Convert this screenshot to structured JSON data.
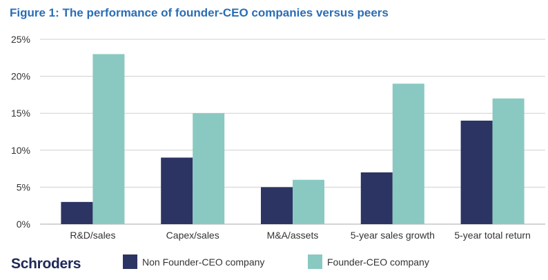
{
  "title": "Figure 1: The performance of founder-CEO companies versus peers",
  "brand": "Schroders",
  "colors": {
    "non_founder": "#2b3462",
    "founder": "#89c9c1",
    "grid": "#cfcfcf",
    "axis": "#aaaaaa"
  },
  "chart_data": {
    "type": "bar",
    "title": "Figure 1: The performance of founder-CEO companies versus peers",
    "xlabel": "",
    "ylabel": "",
    "ylim": [
      0,
      25
    ],
    "yticks": [
      "0%",
      "5%",
      "10%",
      "15%",
      "20%",
      "25%"
    ],
    "ytick_values": [
      0,
      5,
      10,
      15,
      20,
      25
    ],
    "categories": [
      "R&D/sales",
      "Capex/sales",
      "M&A/assets",
      "5-year sales growth",
      "5-year total return"
    ],
    "series": [
      {
        "name": "Non Founder-CEO company",
        "values": [
          3,
          9,
          5,
          7,
          14
        ]
      },
      {
        "name": "Founder-CEO company",
        "values": [
          23,
          15,
          6,
          19,
          17
        ]
      }
    ],
    "legend_position": "bottom",
    "grid": true
  }
}
